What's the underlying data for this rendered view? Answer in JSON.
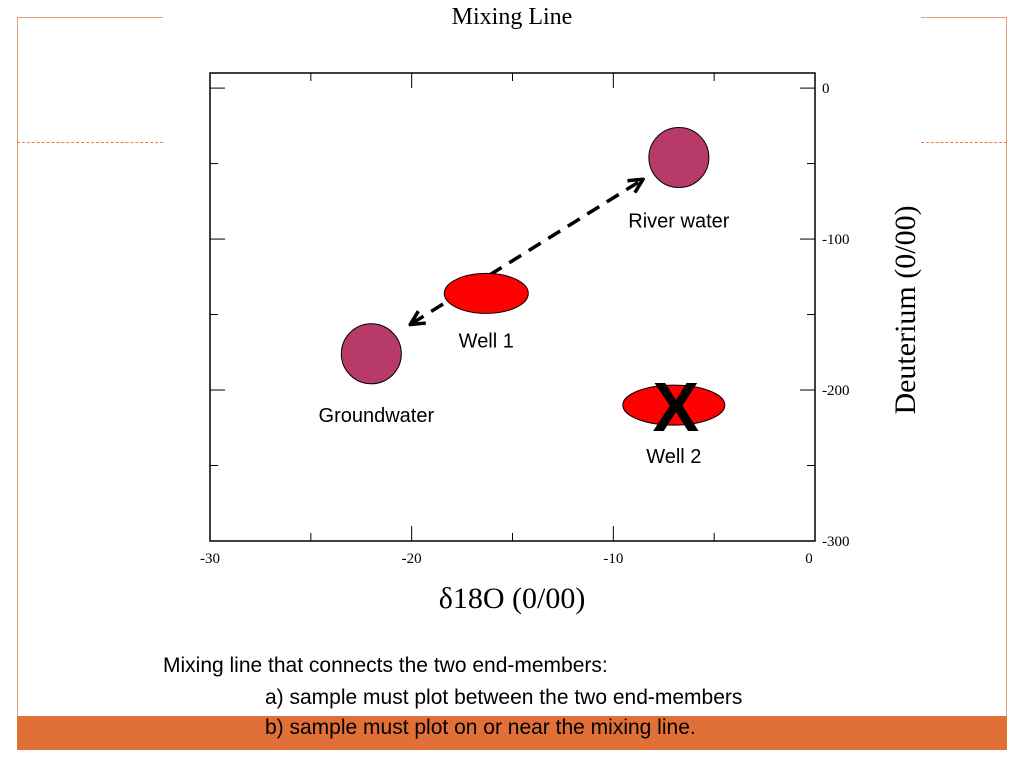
{
  "slide": {
    "accent_color": "#e07038",
    "caption_intro": "Mixing line that connects the two end-members:",
    "caption_a": "a) sample must plot between the two end-members",
    "caption_b": "b) sample must plot on or near the mixing line."
  },
  "chart_data": {
    "type": "scatter",
    "title": "Mixing Line",
    "xlabel": "δ18O (0/00)",
    "ylabel": "Deuterium (0/00)",
    "xlim": [
      -30,
      0
    ],
    "ylim": [
      -300,
      10
    ],
    "x_ticks": [
      -30,
      -20,
      -10,
      0
    ],
    "y_ticks": [
      0,
      -100,
      -200,
      -300
    ],
    "y_axis_side": "right",
    "grid": false,
    "points": [
      {
        "label": "River water",
        "x": -6.75,
        "y": -46,
        "shape": "circle",
        "color": "#b83a68"
      },
      {
        "label": "Groundwater",
        "x": -22,
        "y": -176,
        "shape": "circle",
        "color": "#b83a68"
      },
      {
        "label": "Well 1",
        "x": -16.3,
        "y": -136,
        "shape": "ellipse",
        "color": "#ff0000"
      },
      {
        "label": "Well 2",
        "x": -7,
        "y": -210,
        "shape": "ellipse",
        "color": "#ff0000",
        "marker": "X"
      }
    ],
    "mixing_line": {
      "from": [
        -20,
        -156
      ],
      "to": [
        -8.6,
        -61
      ],
      "style": "dashed double arrow"
    }
  }
}
